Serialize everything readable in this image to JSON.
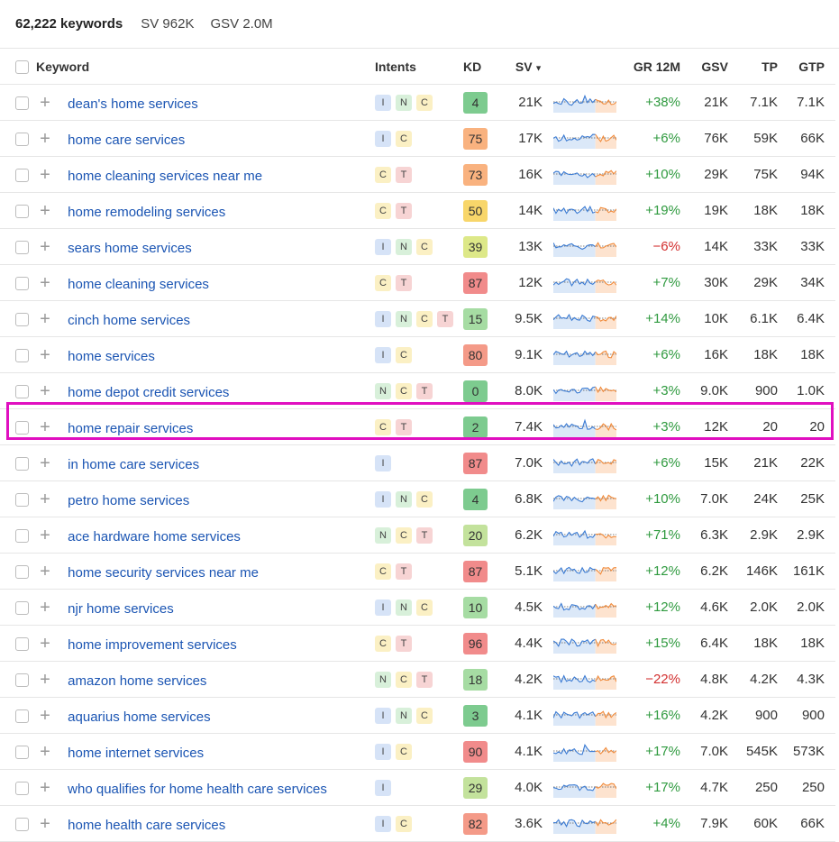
{
  "summary": {
    "keywords_count": "62,222 keywords",
    "sv": "SV 962K",
    "gsv": "GSV 2.0M"
  },
  "header": {
    "keyword": "Keyword",
    "intents": "Intents",
    "kd": "KD",
    "sv": "SV",
    "gr": "GR 12M",
    "gsv": "GSV",
    "tp": "TP",
    "gtp": "GTP"
  },
  "colors": {
    "link": "#1b55b3",
    "highlight": "#e00fc0",
    "positive": "#2f9a3f",
    "negative": "#d22f2f"
  },
  "highlighted_keyword": "home repair services",
  "rows": [
    {
      "keyword": "dean's home services",
      "intents": [
        "I",
        "N",
        "C"
      ],
      "kd": "4",
      "kd_color": "#7dcb8f",
      "sv": "21K",
      "gr": "+38%",
      "gsv": "21K",
      "tp": "7.1K",
      "gtp": "7.1K"
    },
    {
      "keyword": "home care services",
      "intents": [
        "I",
        "C"
      ],
      "kd": "75",
      "kd_color": "#f9b27f",
      "sv": "17K",
      "gr": "+6%",
      "gsv": "76K",
      "tp": "59K",
      "gtp": "66K"
    },
    {
      "keyword": "home cleaning services near me",
      "intents": [
        "C",
        "T"
      ],
      "kd": "73",
      "kd_color": "#f9b27f",
      "sv": "16K",
      "gr": "+10%",
      "gsv": "29K",
      "tp": "75K",
      "gtp": "94K"
    },
    {
      "keyword": "home remodeling services",
      "intents": [
        "C",
        "T"
      ],
      "kd": "50",
      "kd_color": "#f8d66a",
      "sv": "14K",
      "gr": "+19%",
      "gsv": "19K",
      "tp": "18K",
      "gtp": "18K"
    },
    {
      "keyword": "sears home services",
      "intents": [
        "I",
        "N",
        "C"
      ],
      "kd": "39",
      "kd_color": "#dde888",
      "sv": "13K",
      "gr": "−6%",
      "gsv": "14K",
      "tp": "33K",
      "gtp": "33K"
    },
    {
      "keyword": "home cleaning services",
      "intents": [
        "C",
        "T"
      ],
      "kd": "87",
      "kd_color": "#f18b8b",
      "sv": "12K",
      "gr": "+7%",
      "gsv": "30K",
      "tp": "29K",
      "gtp": "34K"
    },
    {
      "keyword": "cinch home services",
      "intents": [
        "I",
        "N",
        "C",
        "T"
      ],
      "kd": "15",
      "kd_color": "#a6dca3",
      "sv": "9.5K",
      "gr": "+14%",
      "gsv": "10K",
      "tp": "6.1K",
      "gtp": "6.4K"
    },
    {
      "keyword": "home services",
      "intents": [
        "I",
        "C"
      ],
      "kd": "80",
      "kd_color": "#f49a88",
      "sv": "9.1K",
      "gr": "+6%",
      "gsv": "16K",
      "tp": "18K",
      "gtp": "18K"
    },
    {
      "keyword": "home depot credit services",
      "intents": [
        "N",
        "C",
        "T"
      ],
      "kd": "0",
      "kd_color": "#7dcb8f",
      "sv": "8.0K",
      "gr": "+3%",
      "gsv": "9.0K",
      "tp": "900",
      "gtp": "1.0K"
    },
    {
      "keyword": "home repair services",
      "intents": [
        "C",
        "T"
      ],
      "kd": "2",
      "kd_color": "#7dcb8f",
      "sv": "7.4K",
      "gr": "+3%",
      "gsv": "12K",
      "tp": "20",
      "gtp": "20"
    },
    {
      "keyword": "in home care services",
      "intents": [
        "I"
      ],
      "kd": "87",
      "kd_color": "#f18b8b",
      "sv": "7.0K",
      "gr": "+6%",
      "gsv": "15K",
      "tp": "21K",
      "gtp": "22K"
    },
    {
      "keyword": "petro home services",
      "intents": [
        "I",
        "N",
        "C"
      ],
      "kd": "4",
      "kd_color": "#7dcb8f",
      "sv": "6.8K",
      "gr": "+10%",
      "gsv": "7.0K",
      "tp": "24K",
      "gtp": "25K"
    },
    {
      "keyword": "ace hardware home services",
      "intents": [
        "N",
        "C",
        "T"
      ],
      "kd": "20",
      "kd_color": "#c3e29c",
      "sv": "6.2K",
      "gr": "+71%",
      "gsv": "6.3K",
      "tp": "2.9K",
      "gtp": "2.9K"
    },
    {
      "keyword": "home security services near me",
      "intents": [
        "C",
        "T"
      ],
      "kd": "87",
      "kd_color": "#f18b8b",
      "sv": "5.1K",
      "gr": "+12%",
      "gsv": "6.2K",
      "tp": "146K",
      "gtp": "161K"
    },
    {
      "keyword": "njr home services",
      "intents": [
        "I",
        "N",
        "C"
      ],
      "kd": "10",
      "kd_color": "#a6dca3",
      "sv": "4.5K",
      "gr": "+12%",
      "gsv": "4.6K",
      "tp": "2.0K",
      "gtp": "2.0K"
    },
    {
      "keyword": "home improvement services",
      "intents": [
        "C",
        "T"
      ],
      "kd": "96",
      "kd_color": "#f18b8b",
      "sv": "4.4K",
      "gr": "+15%",
      "gsv": "6.4K",
      "tp": "18K",
      "gtp": "18K"
    },
    {
      "keyword": "amazon home services",
      "intents": [
        "N",
        "C",
        "T"
      ],
      "kd": "18",
      "kd_color": "#a6dca3",
      "sv": "4.2K",
      "gr": "−22%",
      "gsv": "4.8K",
      "tp": "4.2K",
      "gtp": "4.3K"
    },
    {
      "keyword": "aquarius home services",
      "intents": [
        "I",
        "N",
        "C"
      ],
      "kd": "3",
      "kd_color": "#7dcb8f",
      "sv": "4.1K",
      "gr": "+16%",
      "gsv": "4.2K",
      "tp": "900",
      "gtp": "900"
    },
    {
      "keyword": "home internet services",
      "intents": [
        "I",
        "C"
      ],
      "kd": "90",
      "kd_color": "#f18b8b",
      "sv": "4.1K",
      "gr": "+17%",
      "gsv": "7.0K",
      "tp": "545K",
      "gtp": "573K"
    },
    {
      "keyword": "who qualifies for home health care services",
      "intents": [
        "I"
      ],
      "kd": "29",
      "kd_color": "#c3e29c",
      "sv": "4.0K",
      "gr": "+17%",
      "gsv": "4.7K",
      "tp": "250",
      "gtp": "250"
    },
    {
      "keyword": "home health care services",
      "intents": [
        "I",
        "C"
      ],
      "kd": "82",
      "kd_color": "#f49a88",
      "sv": "3.6K",
      "gr": "+4%",
      "gsv": "7.9K",
      "tp": "60K",
      "gtp": "66K"
    }
  ]
}
